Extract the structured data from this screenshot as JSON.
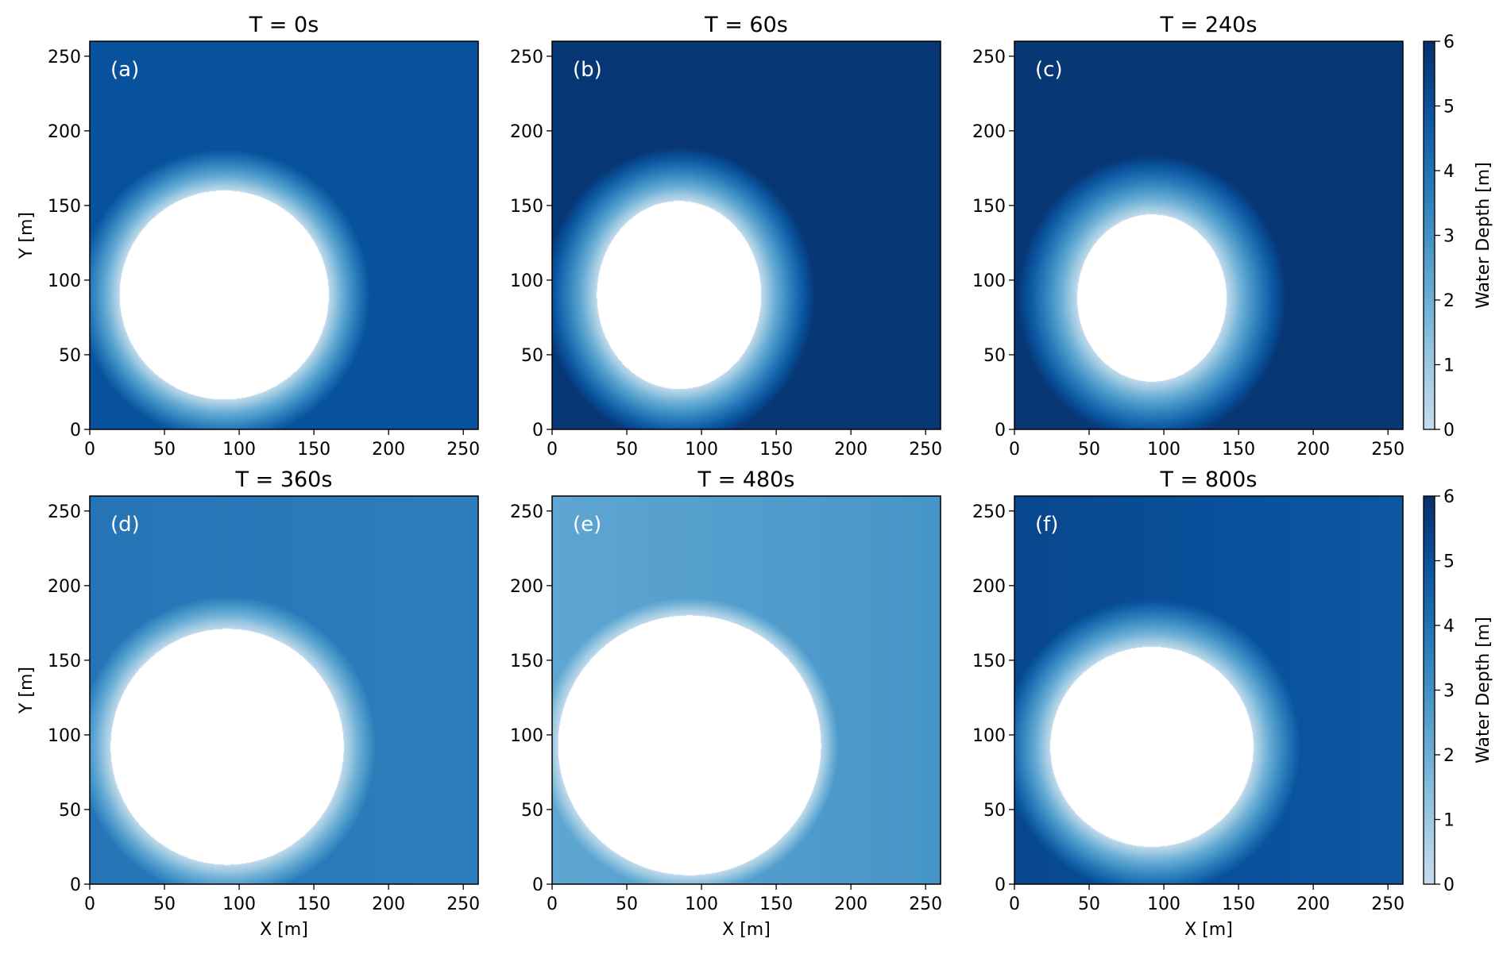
{
  "chart_data": {
    "type": "heatmap",
    "colormap": "Blues",
    "dry_color": "#ffffff",
    "xlabel": "X [m]",
    "ylabel": "Y [m]",
    "xlim": [
      0,
      260
    ],
    "ylim": [
      0,
      260
    ],
    "xticks": [
      "0",
      "50",
      "100",
      "150",
      "200",
      "250"
    ],
    "yticks": [
      "0",
      "50",
      "100",
      "150",
      "200",
      "250"
    ],
    "colorbar": {
      "label": "Water Depth [m]",
      "range": [
        0,
        6
      ],
      "ticks": [
        "0",
        "1",
        "2",
        "3",
        "4",
        "5",
        "6"
      ]
    },
    "panels": [
      {
        "title": "T = 0s",
        "tag": "(a)",
        "dry_center": [
          90,
          90
        ],
        "dry_radii": [
          70,
          70
        ],
        "ring_width": 28,
        "depth_left": 5.0,
        "depth_right": 5.0
      },
      {
        "title": "T = 60s",
        "tag": "(b)",
        "dry_center": [
          85,
          90
        ],
        "dry_radii": [
          55,
          63
        ],
        "ring_width": 36,
        "depth_left": 5.8,
        "depth_right": 5.8
      },
      {
        "title": "T = 240s",
        "tag": "(c)",
        "dry_center": [
          92,
          88
        ],
        "dry_radii": [
          50,
          56
        ],
        "ring_width": 40,
        "depth_left": 5.8,
        "depth_right": 5.8
      },
      {
        "title": "T = 360s",
        "tag": "(d)",
        "dry_center": [
          92,
          92
        ],
        "dry_radii": [
          78,
          79
        ],
        "ring_width": 22,
        "depth_left": 3.9,
        "depth_right": 3.6
      },
      {
        "title": "T = 480s",
        "tag": "(e)",
        "dry_center": [
          92,
          93
        ],
        "dry_radii": [
          88,
          87
        ],
        "ring_width": 12,
        "depth_left": 2.3,
        "depth_right": 2.9
      },
      {
        "title": "T = 800s",
        "tag": "(f)",
        "dry_center": [
          92,
          92
        ],
        "dry_radii": [
          68,
          67
        ],
        "ring_width": 32,
        "depth_left": 5.3,
        "depth_right": 4.8
      }
    ]
  }
}
